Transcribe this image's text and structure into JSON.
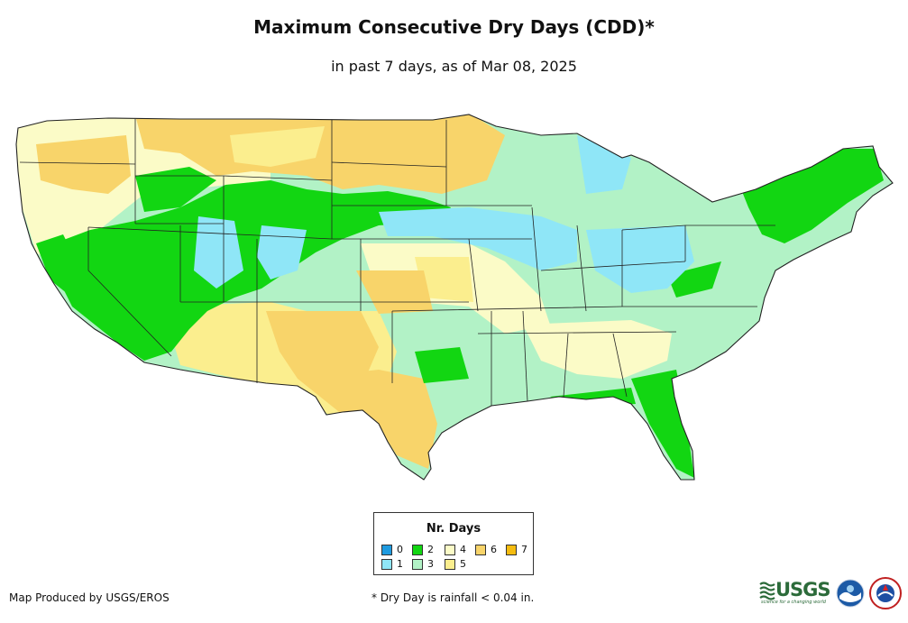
{
  "title": "Maximum Consecutive Dry Days (CDD)*",
  "subtitle": "in past 7 days, as of Mar 08, 2025",
  "legend": {
    "title": "Nr. Days",
    "items": [
      {
        "label": "0",
        "color": "#1f9be0"
      },
      {
        "label": "1",
        "color": "#8fe6f7"
      },
      {
        "label": "2",
        "color": "#12d612"
      },
      {
        "label": "3",
        "color": "#b2f2c6"
      },
      {
        "label": "4",
        "color": "#fbfbc7"
      },
      {
        "label": "5",
        "color": "#fbee8e"
      },
      {
        "label": "6",
        "color": "#f8d46a"
      },
      {
        "label": "7",
        "color": "#f5bc10"
      }
    ]
  },
  "footer": {
    "credit": "Map Produced by USGS/EROS",
    "note": "* Dry Day is rainfall < 0.04 in."
  },
  "logos": {
    "usgs": "USGS",
    "usgs_tagline": "science for a changing world",
    "noaa": "NOAA",
    "nws": "NATIONAL WEATHER SERVICE"
  }
}
